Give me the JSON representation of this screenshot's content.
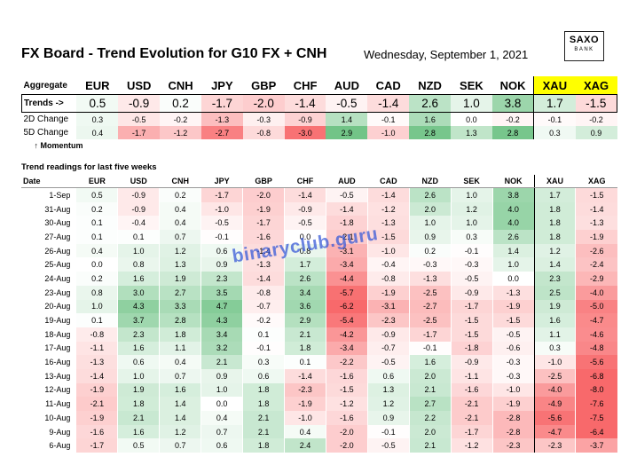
{
  "title": "FX Board - Trend Evolution for G10 FX + CNH",
  "date": "Wednesday, September 1, 2021",
  "logo": {
    "line1": "SAXO",
    "line2": "BANK"
  },
  "watermark": "binaryclub.guru",
  "colors": {
    "positive": "#4caf50",
    "negative": "#e53935",
    "metals_header": "#ffff00"
  },
  "chart_data": {
    "type": "table",
    "currencies": [
      "EUR",
      "USD",
      "CNH",
      "JPY",
      "GBP",
      "CHF",
      "AUD",
      "CAD",
      "NZD",
      "SEK",
      "NOK",
      "XAU",
      "XAG"
    ],
    "aggregate_label": "Aggregate",
    "trends_label": "Trends ->",
    "trends": [
      "0.5",
      "-0.9",
      "0.2",
      "-1.7",
      "-2.0",
      "-1.4",
      "-0.5",
      "-1.4",
      "2.6",
      "1.0",
      "3.8",
      "1.7",
      "-1.5"
    ],
    "change_2d_label": "2D Change",
    "change_2d": [
      "0.3",
      "-0.5",
      "-0.2",
      "-1.3",
      "-0.3",
      "-0.9",
      "1.4",
      "-0.1",
      "1.6",
      "0.0",
      "-0.2",
      "-0.1",
      "-0.2"
    ],
    "change_5d_label": "5D Change",
    "change_5d": [
      "0.4",
      "-1.7",
      "-1.2",
      "-2.7",
      "-0.8",
      "-3.0",
      "2.9",
      "-1.0",
      "2.8",
      "1.3",
      "2.8",
      "0.3",
      "0.9"
    ],
    "momentum_label": "↑ Momentum",
    "history_title": "Trend readings for last five weeks",
    "date_label": "Date",
    "history": [
      {
        "date": "1-Sep",
        "values": [
          "0.5",
          "-0.9",
          "0.2",
          "-1.7",
          "-2.0",
          "-1.4",
          "-0.5",
          "-1.4",
          "2.6",
          "1.0",
          "3.8",
          "1.7",
          "-1.5"
        ]
      },
      {
        "date": "31-Aug",
        "values": [
          "0.2",
          "-0.9",
          "0.4",
          "-1.0",
          "-1.9",
          "-0.9",
          "-1.4",
          "-1.2",
          "2.0",
          "1.2",
          "4.0",
          "1.8",
          "-1.4"
        ]
      },
      {
        "date": "30-Aug",
        "values": [
          "0.1",
          "-0.4",
          "0.4",
          "-0.5",
          "-1.7",
          "-0.5",
          "-1.8",
          "-1.3",
          "1.0",
          "1.0",
          "4.0",
          "1.8",
          "-1.3"
        ]
      },
      {
        "date": "27-Aug",
        "values": [
          "0.1",
          "0.1",
          "0.7",
          "-0.1",
          "-1.6",
          "0.0",
          "-2.1",
          "-1.5",
          "0.9",
          "0.3",
          "2.6",
          "1.8",
          "-1.9"
        ]
      },
      {
        "date": "26-Aug",
        "values": [
          "0.4",
          "1.0",
          "1.2",
          "0.6",
          "-1.4",
          "0.8",
          "-3.1",
          "-1.0",
          "0.2",
          "-0.1",
          "1.4",
          "1.2",
          "-2.6"
        ]
      },
      {
        "date": "25-Aug",
        "values": [
          "0.0",
          "0.8",
          "1.3",
          "0.9",
          "-1.3",
          "1.7",
          "-3.4",
          "-0.4",
          "-0.3",
          "-0.3",
          "1.0",
          "1.4",
          "-2.4"
        ]
      },
      {
        "date": "24-Aug",
        "values": [
          "0.2",
          "1.6",
          "1.9",
          "2.3",
          "-1.4",
          "2.6",
          "-4.4",
          "-0.8",
          "-1.3",
          "-0.5",
          "0.0",
          "2.3",
          "-2.9"
        ]
      },
      {
        "date": "23-Aug",
        "values": [
          "0.8",
          "3.0",
          "2.7",
          "3.5",
          "-0.8",
          "3.4",
          "-5.7",
          "-1.9",
          "-2.5",
          "-0.9",
          "-1.3",
          "2.5",
          "-4.0"
        ]
      },
      {
        "date": "20-Aug",
        "values": [
          "1.0",
          "4.3",
          "3.3",
          "4.7",
          "-0.7",
          "3.6",
          "-6.2",
          "-3.1",
          "-2.7",
          "-1.7",
          "-1.9",
          "1.9",
          "-5.0"
        ]
      },
      {
        "date": "19-Aug",
        "values": [
          "0.1",
          "3.7",
          "2.8",
          "4.3",
          "-0.2",
          "2.9",
          "-5.4",
          "-2.3",
          "-2.5",
          "-1.5",
          "-1.5",
          "1.6",
          "-4.7"
        ]
      },
      {
        "date": "18-Aug",
        "values": [
          "-0.8",
          "2.3",
          "1.8",
          "3.4",
          "0.1",
          "2.1",
          "-4.2",
          "-0.9",
          "-1.7",
          "-1.5",
          "-0.5",
          "1.1",
          "-4.6"
        ]
      },
      {
        "date": "17-Aug",
        "values": [
          "-1.1",
          "1.6",
          "1.1",
          "3.2",
          "-0.1",
          "1.8",
          "-3.4",
          "-0.7",
          "-0.1",
          "-1.8",
          "-0.6",
          "0.3",
          "-4.8"
        ]
      },
      {
        "date": "16-Aug",
        "values": [
          "-1.3",
          "0.6",
          "0.4",
          "2.1",
          "0.3",
          "0.1",
          "-2.2",
          "-0.5",
          "1.6",
          "-0.9",
          "-0.3",
          "-1.0",
          "-5.6"
        ]
      },
      {
        "date": "13-Aug",
        "values": [
          "-1.4",
          "1.0",
          "0.7",
          "0.9",
          "0.6",
          "-1.4",
          "-1.6",
          "0.6",
          "2.0",
          "-1.1",
          "-0.3",
          "-2.5",
          "-6.8"
        ]
      },
      {
        "date": "12-Aug",
        "values": [
          "-1.9",
          "1.9",
          "1.6",
          "1.0",
          "1.8",
          "-2.3",
          "-1.5",
          "1.3",
          "2.1",
          "-1.6",
          "-1.0",
          "-4.0",
          "-8.0"
        ]
      },
      {
        "date": "11-Aug",
        "values": [
          "-2.1",
          "1.8",
          "1.4",
          "0.0",
          "1.8",
          "-1.9",
          "-1.2",
          "1.2",
          "2.7",
          "-2.1",
          "-1.9",
          "-4.9",
          "-7.6"
        ]
      },
      {
        "date": "10-Aug",
        "values": [
          "-1.9",
          "2.1",
          "1.4",
          "0.4",
          "2.1",
          "-1.0",
          "-1.6",
          "0.9",
          "2.2",
          "-2.1",
          "-2.8",
          "-5.6",
          "-7.5"
        ]
      },
      {
        "date": "9-Aug",
        "values": [
          "-1.6",
          "1.6",
          "1.2",
          "0.7",
          "2.1",
          "0.4",
          "-2.0",
          "-0.1",
          "2.0",
          "-1.7",
          "-2.8",
          "-4.7",
          "-6.4"
        ]
      },
      {
        "date": "6-Aug",
        "values": [
          "-1.7",
          "0.5",
          "0.7",
          "0.6",
          "1.8",
          "2.4",
          "-2.0",
          "-0.5",
          "2.1",
          "-1.2",
          "-2.3",
          "-2.3",
          "-3.7"
        ]
      }
    ]
  }
}
